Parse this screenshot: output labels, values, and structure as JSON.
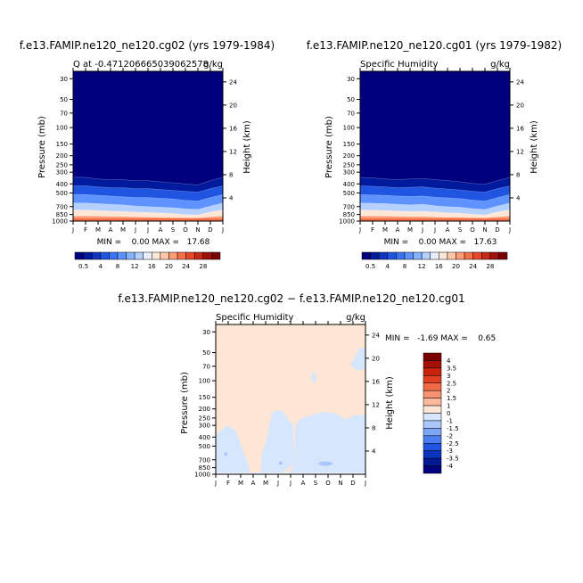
{
  "chart_data": [
    {
      "type": "heatmap",
      "title": "f.e13.FAMIP.ne120_ne120.cg02 (yrs 1979-1984)",
      "subtitle_left": "Q at -0.471206665039062578",
      "subtitle_right": "g/kg",
      "ylabel": "Pressure (mb)",
      "ylabel_right": "Height (km)",
      "x_ticks": [
        "J",
        "F",
        "M",
        "A",
        "M",
        "J",
        "J",
        "A",
        "S",
        "O",
        "N",
        "D",
        "J"
      ],
      "y_ticks": [
        "30",
        "50",
        "70",
        "100",
        "150",
        "200",
        "250",
        "300",
        "400",
        "500",
        "700",
        "850",
        "1000"
      ],
      "y_ticks_right": [
        "24",
        "20",
        "16",
        "12",
        "8",
        "4"
      ],
      "min_max_text": "MIN =    0.00 MAX =   17.68",
      "y_scale": "log",
      "colorbar_labels": [
        "0.5",
        "4",
        "8",
        "12",
        "16",
        "20",
        "24",
        "28"
      ],
      "contour_levels": [
        0.5,
        1,
        2,
        3,
        4,
        6,
        8,
        10,
        12,
        14,
        16,
        18,
        20,
        22,
        24,
        26,
        28
      ],
      "boundary_pressure_mb": [
        [
          340,
          340,
          355,
          360,
          360,
          370,
          370,
          380,
          390,
          400,
          410,
          370,
          340
        ],
        [
          420,
          420,
          430,
          440,
          440,
          450,
          450,
          460,
          470,
          480,
          490,
          450,
          420
        ],
        [
          520,
          520,
          530,
          540,
          550,
          560,
          560,
          570,
          580,
          600,
          610,
          560,
          520
        ],
        [
          640,
          640,
          650,
          660,
          670,
          690,
          700,
          710,
          720,
          740,
          750,
          690,
          640
        ],
        [
          760,
          760,
          770,
          780,
          790,
          800,
          810,
          820,
          830,
          850,
          860,
          800,
          760
        ],
        [
          880,
          880,
          885,
          890,
          895,
          900,
          905,
          910,
          915,
          920,
          925,
          900,
          880
        ]
      ]
    },
    {
      "type": "heatmap",
      "title": "f.e13.FAMIP.ne120_ne120.cg01 (yrs 1979-1982)",
      "subtitle_left": "Specific Humidity",
      "subtitle_right": "g/kg",
      "ylabel": "Pressure (mb)",
      "ylabel_right": "Height (km)",
      "x_ticks": [
        "J",
        "F",
        "M",
        "A",
        "M",
        "J",
        "J",
        "A",
        "S",
        "O",
        "N",
        "D",
        "J"
      ],
      "y_ticks": [
        "30",
        "50",
        "70",
        "100",
        "150",
        "200",
        "250",
        "300",
        "400",
        "500",
        "700",
        "850",
        "1000"
      ],
      "y_ticks_right": [
        "24",
        "20",
        "16",
        "12",
        "8",
        "4"
      ],
      "min_max_text": "MIN =    0.00 MAX =   17.63",
      "y_scale": "log",
      "colorbar_labels": [
        "0.5",
        "4",
        "8",
        "12",
        "16",
        "20",
        "24",
        "28"
      ],
      "contour_levels": [
        0.5,
        1,
        2,
        3,
        4,
        6,
        8,
        10,
        12,
        14,
        16,
        18,
        20,
        22,
        24,
        26,
        28
      ],
      "boundary_pressure_mb": [
        [
          340,
          345,
          355,
          360,
          355,
          350,
          360,
          370,
          380,
          395,
          405,
          370,
          340
        ],
        [
          420,
          425,
          430,
          440,
          435,
          430,
          445,
          455,
          465,
          480,
          490,
          450,
          420
        ],
        [
          520,
          525,
          530,
          540,
          545,
          540,
          555,
          565,
          575,
          595,
          610,
          560,
          520
        ],
        [
          640,
          645,
          650,
          660,
          670,
          660,
          685,
          700,
          710,
          735,
          750,
          690,
          640
        ],
        [
          760,
          765,
          770,
          780,
          790,
          785,
          800,
          815,
          825,
          845,
          860,
          800,
          760
        ],
        [
          880,
          882,
          885,
          890,
          895,
          895,
          903,
          908,
          912,
          918,
          925,
          900,
          880
        ]
      ]
    },
    {
      "type": "heatmap",
      "title": "f.e13.FAMIP.ne120_ne120.cg02 − f.e13.FAMIP.ne120_ne120.cg01",
      "subtitle_left": "Specific Humidity",
      "subtitle_right": "g/kg",
      "ylabel": "Pressure (mb)",
      "ylabel_right": "Height (km)",
      "x_ticks": [
        "J",
        "F",
        "M",
        "A",
        "M",
        "J",
        "J",
        "A",
        "S",
        "O",
        "N",
        "D",
        "J"
      ],
      "y_ticks": [
        "30",
        "50",
        "70",
        "100",
        "150",
        "200",
        "250",
        "300",
        "400",
        "500",
        "700",
        "850",
        "1000"
      ],
      "y_ticks_right": [
        "24",
        "20",
        "16",
        "12",
        "8",
        "4"
      ],
      "min_max_text": "MIN =   -1.69 MAX =    0.65",
      "y_scale": "log",
      "colorbar_labels": [
        "4",
        "3.5",
        "3",
        "2.5",
        "2",
        "1.5",
        "1",
        "0",
        "-1",
        "-1.5",
        "-2",
        "-2.5",
        "-3",
        "-3.5",
        "-4"
      ]
    }
  ],
  "colors": {
    "moist_scale": [
      "#00007f",
      "#001a9e",
      "#0f35c0",
      "#1f55e0",
      "#3a73f5",
      "#5d92ff",
      "#86b2ff",
      "#b4d0ff",
      "#e6eeff",
      "#ffe7d8",
      "#ffc8a8",
      "#ff9e76",
      "#f57048",
      "#e6462a",
      "#c82816",
      "#a01007",
      "#7a0000"
    ],
    "diff_scale": [
      "#7a0000",
      "#a51005",
      "#c8230b",
      "#e04020",
      "#f06a45",
      "#f79372",
      "#fcb89c",
      "#fde6d6",
      "#d6e6fd",
      "#aac7fb",
      "#7ea6f6",
      "#4b7ff0",
      "#1f55e0",
      "#0a34be",
      "#001a97",
      "#00007f"
    ],
    "positive_fill": "#fde6d6",
    "negative_fill": "#d6e6fd",
    "negative_strong": "#aac7fb"
  }
}
